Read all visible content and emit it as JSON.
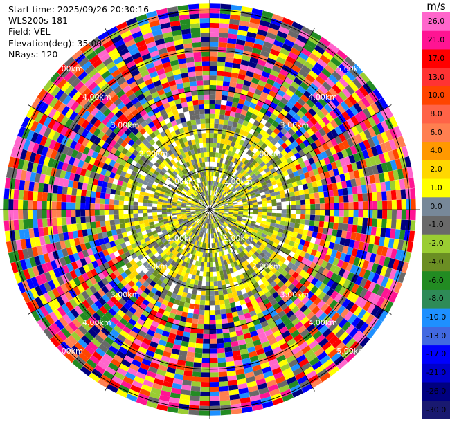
{
  "info": {
    "start_time": "Start time: 2025/09/26 20:30:16",
    "station": "WLS200s-181",
    "field": "Field: VEL",
    "elevation": "Elevation(deg): 35.00",
    "nrays": "NRays: 120"
  },
  "colorbar": {
    "unit": "m/s",
    "levels": [
      {
        "label": "26.0",
        "color": "#ff66cc"
      },
      {
        "label": "21.0",
        "color": "#ff1493"
      },
      {
        "label": "17.0",
        "color": "#ff0000"
      },
      {
        "label": "13.0",
        "color": "#ff3333"
      },
      {
        "label": "10.0",
        "color": "#ff4500"
      },
      {
        "label": "8.0",
        "color": "#ff6347"
      },
      {
        "label": "6.0",
        "color": "#ff7f50"
      },
      {
        "label": "4.0",
        "color": "#ff9900"
      },
      {
        "label": "2.0",
        "color": "#ffd700"
      },
      {
        "label": "1.0",
        "color": "#ffff00"
      },
      {
        "label": "0.0",
        "color": "#778899"
      },
      {
        "label": "-1.0",
        "color": "#696969"
      },
      {
        "label": "-2.0",
        "color": "#9acd32"
      },
      {
        "label": "-4.0",
        "color": "#6b8e23"
      },
      {
        "label": "-6.0",
        "color": "#228b22"
      },
      {
        "label": "-8.0",
        "color": "#2e8b57"
      },
      {
        "label": "-10.0",
        "color": "#1e90ff"
      },
      {
        "label": "-13.0",
        "color": "#4169e1"
      },
      {
        "label": "-17.0",
        "color": "#0000ff"
      },
      {
        "label": "-21.0",
        "color": "#0000cd"
      },
      {
        "label": "-26.0",
        "color": "#000080"
      },
      {
        "label": "-30.0",
        "color": "#191970"
      }
    ]
  },
  "chart_data": {
    "type": "heatmap",
    "projection": "polar PPI",
    "field": "VEL",
    "units": "m/s",
    "elevation_deg": 35.0,
    "nrays": 120,
    "range_rings_km": [
      1.0,
      2.0,
      3.0,
      4.0,
      5.0
    ],
    "ring_labels": [
      "1.00km",
      "2.00km",
      "3.00km",
      "4.00km",
      "5.00km"
    ],
    "spoke_count": 12,
    "inner_zone": {
      "colors": [
        "#ffff00",
        "#ffd700",
        "#778899",
        "#696969",
        "#9acd32",
        "#6b8e23"
      ]
    },
    "outer_zone": {
      "colors": [
        "#ff66cc",
        "#ff1493",
        "#ff0000",
        "#ff4500",
        "#ffff00",
        "#9acd32",
        "#228b22",
        "#1e90ff",
        "#0000ff",
        "#000080",
        "#696969",
        "#ff7f50"
      ]
    }
  }
}
